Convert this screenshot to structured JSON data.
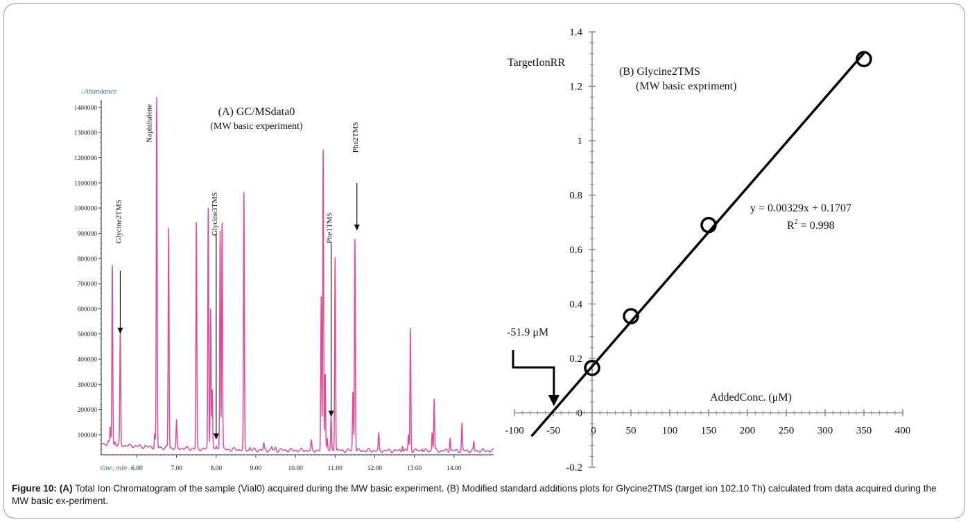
{
  "caption": {
    "label": "Figure 10:",
    "part_a_tag": "(A)",
    "part_a_text": "Total Ion Chromatogram of the sample (Vial0) acquired during the MW basic experiment. (B) Modified standard additions plots for Glycine2TMS (target ion 102.10 Th) calculated from data acquired during the MW basic ex-periment."
  },
  "chart_data": [
    {
      "type": "line",
      "title": "(A) GC/MSdata0",
      "subtitle": "(MW basic experiment)",
      "ylabel": "↓Abundance",
      "xlabel": "time, min→",
      "xlim": [
        5.1,
        15.0
      ],
      "ylim": [
        20000,
        1430000
      ],
      "x_ticks": [
        6.0,
        7.0,
        8.0,
        9.0,
        10.0,
        11.0,
        12.0,
        13.0,
        14.0
      ],
      "x_tick_labels": [
        "6.00",
        "7.00",
        "8.00",
        "9.00",
        "10.00",
        "11.00",
        "12.00",
        "13.00",
        "14.00"
      ],
      "y_ticks": [
        100000,
        200000,
        300000,
        400000,
        500000,
        600000,
        700000,
        800000,
        900000,
        1000000,
        1100000,
        1200000,
        1300000,
        1400000
      ],
      "y_tick_labels": [
        "100000",
        "200000",
        "300000",
        "400000",
        "500000",
        "600000",
        "700000",
        "800000",
        "900000",
        "1000000",
        "1100000",
        "1200000",
        "1300000",
        "1400000"
      ],
      "baseline": 65000,
      "line_color": "#e0489a",
      "peaks": [
        [
          5.28,
          30000
        ],
        [
          5.33,
          110000
        ],
        [
          5.38,
          760000
        ],
        [
          5.45,
          40000
        ],
        [
          5.55,
          20000
        ],
        [
          5.58,
          490000
        ],
        [
          5.9,
          10000
        ],
        [
          6.2,
          8000
        ],
        [
          6.45,
          100000
        ],
        [
          6.5,
          1430000
        ],
        [
          6.8,
          920000
        ],
        [
          7.0,
          150000
        ],
        [
          7.5,
          940000
        ],
        [
          7.8,
          1000000
        ],
        [
          7.86,
          610000
        ],
        [
          7.9,
          280000
        ],
        [
          8.0,
          40000
        ],
        [
          8.1,
          920000
        ],
        [
          8.15,
          960000
        ],
        [
          8.5,
          10000
        ],
        [
          8.7,
          1060000
        ],
        [
          8.85,
          30000
        ],
        [
          9.2,
          70000
        ],
        [
          9.4,
          40000
        ],
        [
          9.5,
          30000
        ],
        [
          10.4,
          80000
        ],
        [
          10.65,
          660000
        ],
        [
          10.7,
          1240000
        ],
        [
          10.75,
          360000
        ],
        [
          10.8,
          90000
        ],
        [
          10.9,
          180000
        ],
        [
          11.0,
          820000
        ],
        [
          11.45,
          280000
        ],
        [
          11.5,
          890000
        ],
        [
          12.1,
          110000
        ],
        [
          12.7,
          70000
        ],
        [
          12.85,
          110000
        ],
        [
          12.9,
          530000
        ],
        [
          13.1,
          50000
        ],
        [
          13.2,
          40000
        ],
        [
          13.45,
          120000
        ],
        [
          13.5,
          250000
        ],
        [
          13.9,
          100000
        ],
        [
          14.2,
          150000
        ],
        [
          14.5,
          80000
        ]
      ],
      "annotations": [
        {
          "label": "Glycine2TMS",
          "x": 5.58,
          "y_text": 860000,
          "y_arrow_top": 750000,
          "y_arrow_tip": 500000,
          "arrow": true
        },
        {
          "label": "Naphthalene",
          "x": 6.32,
          "y_text": 1260000,
          "arrow": false
        },
        {
          "label": "Glycine3TMS",
          "x": 8.0,
          "y_text": 890000,
          "y_arrow_top": 900000,
          "y_arrow_tip": 80000,
          "arrow": true
        },
        {
          "label": "Phe1TMS",
          "x": 10.9,
          "y_text": 860000,
          "y_arrow_top": 860000,
          "y_arrow_tip": 170000,
          "arrow": true
        },
        {
          "label": "Phe2TMS",
          "x": 11.55,
          "y_text": 1220000,
          "y_arrow_top": 1100000,
          "y_arrow_tip": 910000,
          "arrow": true
        }
      ]
    },
    {
      "type": "scatter",
      "title": "(B) Glycine2TMS",
      "subtitle": "(MW basic expriment)",
      "ylabel": "TargetIonRR",
      "xlabel": "AddedConc. (μM)",
      "xlim": [
        -100,
        400
      ],
      "ylim": [
        -0.2,
        1.4
      ],
      "x_ticks": [
        -100,
        -50,
        0,
        50,
        100,
        150,
        200,
        250,
        300,
        350,
        400
      ],
      "x_tick_labels": [
        "-100",
        "-50",
        "0",
        "50",
        "100",
        "150",
        "200",
        "250",
        "300",
        "350",
        "400"
      ],
      "y_ticks": [
        -0.2,
        0,
        0.2,
        0.4,
        0.6,
        0.8,
        1,
        1.2,
        1.4
      ],
      "y_tick_labels": [
        "-0.2",
        "0",
        "0.2",
        "0.4",
        "0.6",
        "0.8",
        "1",
        "1.2",
        "1.4"
      ],
      "points": [
        {
          "x": 0,
          "y": 0.165
        },
        {
          "x": 50,
          "y": 0.355
        },
        {
          "x": 150,
          "y": 0.69
        },
        {
          "x": 350,
          "y": 1.3
        }
      ],
      "trendline": {
        "slope": 0.00329,
        "intercept": 0.1707,
        "x_from": -78,
        "x_to": 350
      },
      "equation": "y = 0.00329x + 0.1707",
      "r2_prefix": "R",
      "r2_exp": "2",
      "r2_suffix": " = 0.998",
      "intercept_label": "-51.9 μM",
      "intercept_x": -51.9
    }
  ]
}
